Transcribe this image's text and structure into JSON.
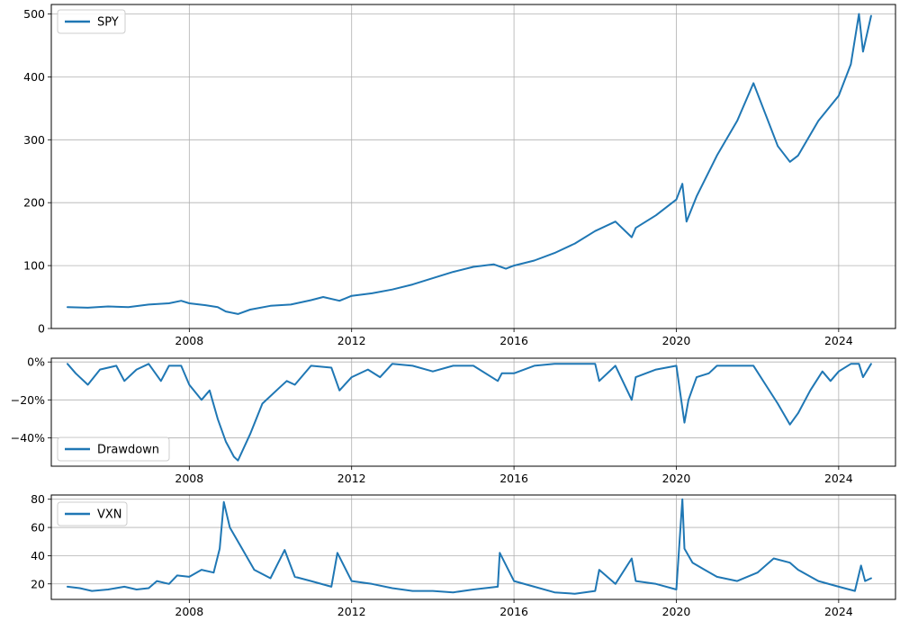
{
  "chart_data": [
    {
      "type": "line",
      "title": "",
      "xlabel": "",
      "ylabel": "",
      "xlim": [
        2004.6,
        2025.4
      ],
      "ylim": [
        0,
        515
      ],
      "grid": true,
      "legend_placement": "top-left",
      "x_ticks": [
        2008,
        2012,
        2016,
        2020,
        2024
      ],
      "x_tick_labels": [
        "2008",
        "2012",
        "2016",
        "2020",
        "2024"
      ],
      "y_ticks": [
        0,
        100,
        200,
        300,
        400,
        500
      ],
      "y_tick_labels": [
        "0",
        "100",
        "200",
        "300",
        "400",
        "500"
      ],
      "series": [
        {
          "name": "SPY",
          "color": "#1f77b4",
          "x": [
            2005.0,
            2005.5,
            2006.0,
            2006.5,
            2007.0,
            2007.5,
            2007.8,
            2008.0,
            2008.4,
            2008.7,
            2008.9,
            2009.2,
            2009.5,
            2010.0,
            2010.5,
            2011.0,
            2011.3,
            2011.7,
            2012.0,
            2012.5,
            2013.0,
            2013.5,
            2014.0,
            2014.5,
            2015.0,
            2015.5,
            2015.8,
            2016.0,
            2016.5,
            2017.0,
            2017.5,
            2018.0,
            2018.5,
            2018.9,
            2019.0,
            2019.5,
            2020.0,
            2020.15,
            2020.25,
            2020.5,
            2021.0,
            2021.5,
            2021.9,
            2022.2,
            2022.5,
            2022.8,
            2023.0,
            2023.5,
            2024.0,
            2024.3,
            2024.5,
            2024.6,
            2024.8
          ],
          "values": [
            34,
            33,
            35,
            34,
            38,
            40,
            44,
            40,
            37,
            34,
            27,
            23,
            30,
            36,
            38,
            45,
            50,
            44,
            52,
            56,
            62,
            70,
            80,
            90,
            98,
            102,
            95,
            100,
            108,
            120,
            135,
            155,
            170,
            145,
            160,
            180,
            205,
            230,
            170,
            210,
            275,
            330,
            390,
            340,
            290,
            265,
            275,
            330,
            370,
            420,
            500,
            440,
            497
          ]
        }
      ]
    },
    {
      "type": "line",
      "title": "",
      "xlabel": "",
      "ylabel": "",
      "xlim": [
        2004.6,
        2025.4
      ],
      "ylim": [
        -0.55,
        0.02
      ],
      "grid": true,
      "legend_placement": "bottom-left",
      "x_ticks": [
        2008,
        2012,
        2016,
        2020,
        2024
      ],
      "x_tick_labels": [
        "2008",
        "2012",
        "2016",
        "2020",
        "2024"
      ],
      "y_ticks": [
        0,
        -0.2,
        -0.4
      ],
      "y_tick_labels": [
        "0%",
        "−20%",
        "−40%"
      ],
      "series": [
        {
          "name": "Drawdown",
          "color": "#1f77b4",
          "x": [
            2005.0,
            2005.2,
            2005.5,
            2005.8,
            2006.2,
            2006.4,
            2006.7,
            2007.0,
            2007.3,
            2007.5,
            2007.8,
            2008.0,
            2008.3,
            2008.5,
            2008.7,
            2008.9,
            2009.1,
            2009.2,
            2009.5,
            2009.8,
            2010.2,
            2010.4,
            2010.6,
            2011.0,
            2011.5,
            2011.7,
            2012.0,
            2012.4,
            2012.7,
            2013.0,
            2013.5,
            2014.0,
            2014.5,
            2015.0,
            2015.6,
            2015.7,
            2016.0,
            2016.5,
            2017.0,
            2017.5,
            2018.0,
            2018.1,
            2018.5,
            2018.9,
            2019.0,
            2019.5,
            2020.0,
            2020.2,
            2020.3,
            2020.5,
            2020.8,
            2021.0,
            2021.5,
            2021.9,
            2022.2,
            2022.5,
            2022.8,
            2023.0,
            2023.3,
            2023.6,
            2023.8,
            2024.0,
            2024.3,
            2024.5,
            2024.6,
            2024.8
          ],
          "values": [
            -0.01,
            -0.06,
            -0.12,
            -0.04,
            -0.02,
            -0.1,
            -0.04,
            -0.01,
            -0.1,
            -0.02,
            -0.02,
            -0.12,
            -0.2,
            -0.15,
            -0.3,
            -0.42,
            -0.5,
            -0.52,
            -0.38,
            -0.22,
            -0.14,
            -0.1,
            -0.12,
            -0.02,
            -0.03,
            -0.15,
            -0.08,
            -0.04,
            -0.08,
            -0.01,
            -0.02,
            -0.05,
            -0.02,
            -0.02,
            -0.1,
            -0.06,
            -0.06,
            -0.02,
            -0.01,
            -0.01,
            -0.01,
            -0.1,
            -0.02,
            -0.2,
            -0.08,
            -0.04,
            -0.02,
            -0.32,
            -0.2,
            -0.08,
            -0.06,
            -0.02,
            -0.02,
            -0.02,
            -0.12,
            -0.22,
            -0.33,
            -0.27,
            -0.15,
            -0.05,
            -0.1,
            -0.05,
            -0.01,
            -0.01,
            -0.08,
            -0.01
          ]
        }
      ]
    },
    {
      "type": "line",
      "title": "",
      "xlabel": "",
      "ylabel": "",
      "xlim": [
        2004.6,
        2025.4
      ],
      "ylim": [
        9,
        83
      ],
      "grid": true,
      "legend_placement": "top-left",
      "x_ticks": [
        2008,
        2012,
        2016,
        2020,
        2024
      ],
      "x_tick_labels": [
        "2008",
        "2012",
        "2016",
        "2020",
        "2024"
      ],
      "y_ticks": [
        20,
        40,
        60,
        80
      ],
      "y_tick_labels": [
        "20",
        "40",
        "60",
        "80"
      ],
      "series": [
        {
          "name": "VXN",
          "color": "#1f77b4",
          "x": [
            2005.0,
            2005.3,
            2005.6,
            2006.0,
            2006.4,
            2006.7,
            2007.0,
            2007.2,
            2007.5,
            2007.7,
            2008.0,
            2008.3,
            2008.6,
            2008.75,
            2008.85,
            2009.0,
            2009.3,
            2009.6,
            2010.0,
            2010.35,
            2010.6,
            2011.0,
            2011.5,
            2011.65,
            2012.0,
            2012.5,
            2013.0,
            2013.5,
            2014.0,
            2014.5,
            2015.0,
            2015.6,
            2015.65,
            2016.0,
            2016.5,
            2017.0,
            2017.5,
            2018.0,
            2018.1,
            2018.5,
            2018.9,
            2019.0,
            2019.5,
            2020.0,
            2020.15,
            2020.2,
            2020.4,
            2020.7,
            2021.0,
            2021.5,
            2022.0,
            2022.4,
            2022.8,
            2023.0,
            2023.5,
            2024.0,
            2024.4,
            2024.55,
            2024.65,
            2024.8
          ],
          "values": [
            18,
            17,
            15,
            16,
            18,
            16,
            17,
            22,
            20,
            26,
            25,
            30,
            28,
            45,
            78,
            60,
            45,
            30,
            24,
            44,
            25,
            22,
            18,
            42,
            22,
            20,
            17,
            15,
            15,
            14,
            16,
            18,
            42,
            22,
            18,
            14,
            13,
            15,
            30,
            20,
            38,
            22,
            20,
            16,
            80,
            45,
            35,
            30,
            25,
            22,
            28,
            38,
            35,
            30,
            22,
            18,
            15,
            33,
            22,
            24
          ]
        }
      ]
    }
  ]
}
